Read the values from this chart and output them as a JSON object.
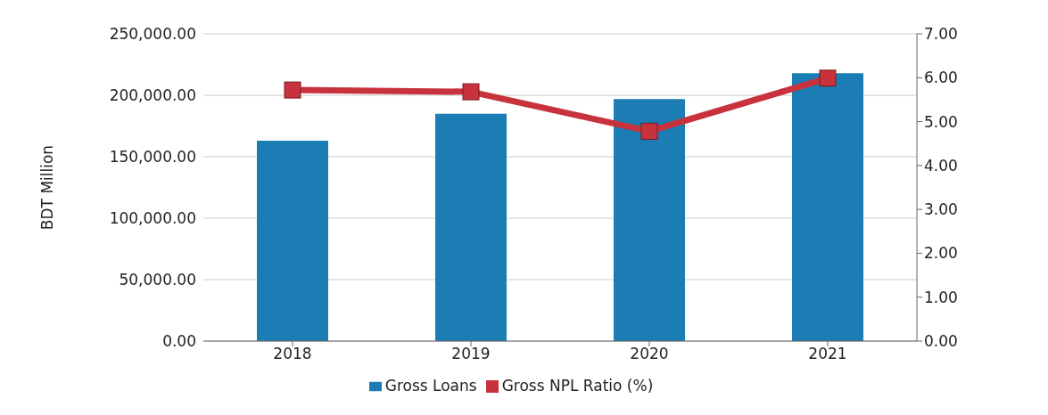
{
  "chart_data": {
    "type": "bar",
    "ylabel": "BDT Million",
    "categories": [
      "2018",
      "2019",
      "2020",
      "2021"
    ],
    "series": [
      {
        "name": "Gross Loans",
        "color": "#1b7db4",
        "values": [
          163000,
          185000,
          197000,
          218000
        ]
      },
      {
        "name": "Gross NPL Ratio (%)",
        "type": "line",
        "axis": "y2",
        "color": "#c8323c",
        "values": [
          5.72,
          5.68,
          4.78,
          5.99
        ]
      }
    ],
    "ylim": [
      0,
      250000
    ],
    "yticks": [
      {
        "value": 0,
        "label": "0.00"
      },
      {
        "value": 50000,
        "label": "50,000.00"
      },
      {
        "value": 100000,
        "label": "100,000.00"
      },
      {
        "value": 150000,
        "label": "150,000.00"
      },
      {
        "value": 200000,
        "label": "200,000.00"
      },
      {
        "value": 250000,
        "label": "250,000.00"
      }
    ],
    "y2lim": [
      0,
      7
    ],
    "y2ticks": [
      {
        "value": 0,
        "label": "0.00"
      },
      {
        "value": 1,
        "label": "1.00"
      },
      {
        "value": 2,
        "label": "2.00"
      },
      {
        "value": 3,
        "label": "3.00"
      },
      {
        "value": 4,
        "label": "4.00"
      },
      {
        "value": 5,
        "label": "5.00"
      },
      {
        "value": 6,
        "label": "6.00"
      },
      {
        "value": 7,
        "label": "7.00"
      }
    ],
    "grid": "y",
    "legend": "bottom",
    "marker": "square",
    "line_style": "solid"
  }
}
